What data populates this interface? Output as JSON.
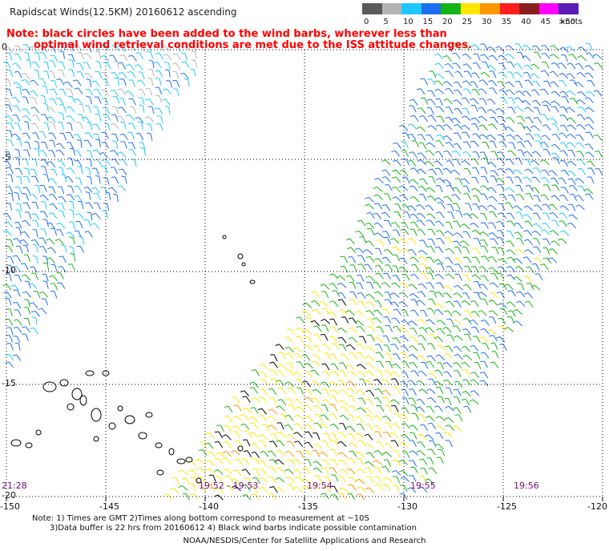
{
  "header": {
    "title": "Rapidscat Winds(12.5KM) 20160612 ascending",
    "note_line1": "Note: black circles have been added to the wind barbs, wherever less than",
    "note_line2": "optimal wind retrieval conditions are met due to the ISS attitude changes."
  },
  "legend": {
    "unit": "knots",
    "bins": [
      {
        "label": "0",
        "color": "#5a5a5a"
      },
      {
        "label": "5",
        "color": "#b4b4b4"
      },
      {
        "label": "10",
        "color": "#1ec8ff"
      },
      {
        "label": "15",
        "color": "#1e6ef0"
      },
      {
        "label": "20",
        "color": "#14b414"
      },
      {
        "label": "25",
        "color": "#ffe600"
      },
      {
        "label": "30",
        "color": "#ff9600"
      },
      {
        "label": "35",
        "color": "#ff1e1e"
      },
      {
        "label": "40",
        "color": "#8c1e1e"
      },
      {
        "label": "45",
        "color": "#ff00ff"
      },
      {
        "label": ">50",
        "color": "#5a1eb4"
      }
    ]
  },
  "map": {
    "lat_labels": [
      "0",
      "-5",
      "-10",
      "-15",
      "-20"
    ],
    "lon_labels": [
      "-150",
      "-145",
      "-140",
      "-135",
      "-130",
      "-125",
      "-120"
    ],
    "pass_times": [
      "21:28",
      "19:52 - 19:53",
      "19:54",
      "19:55",
      "19:56"
    ],
    "region": "Central South Pacific, 0 to 20S, 150W to 120W",
    "pass_count": 2
  },
  "footer": {
    "note_line1": "Note: 1) Times are GMT 2)Times along bottom correspond to measurement at ~10S",
    "note_line2": "3)Data buffer is 22 hrs from 20160612 4) Black wind barbs indicate possible contamination",
    "credit": "NOAA/NESDIS/Center for Satellite Applications and Research"
  }
}
